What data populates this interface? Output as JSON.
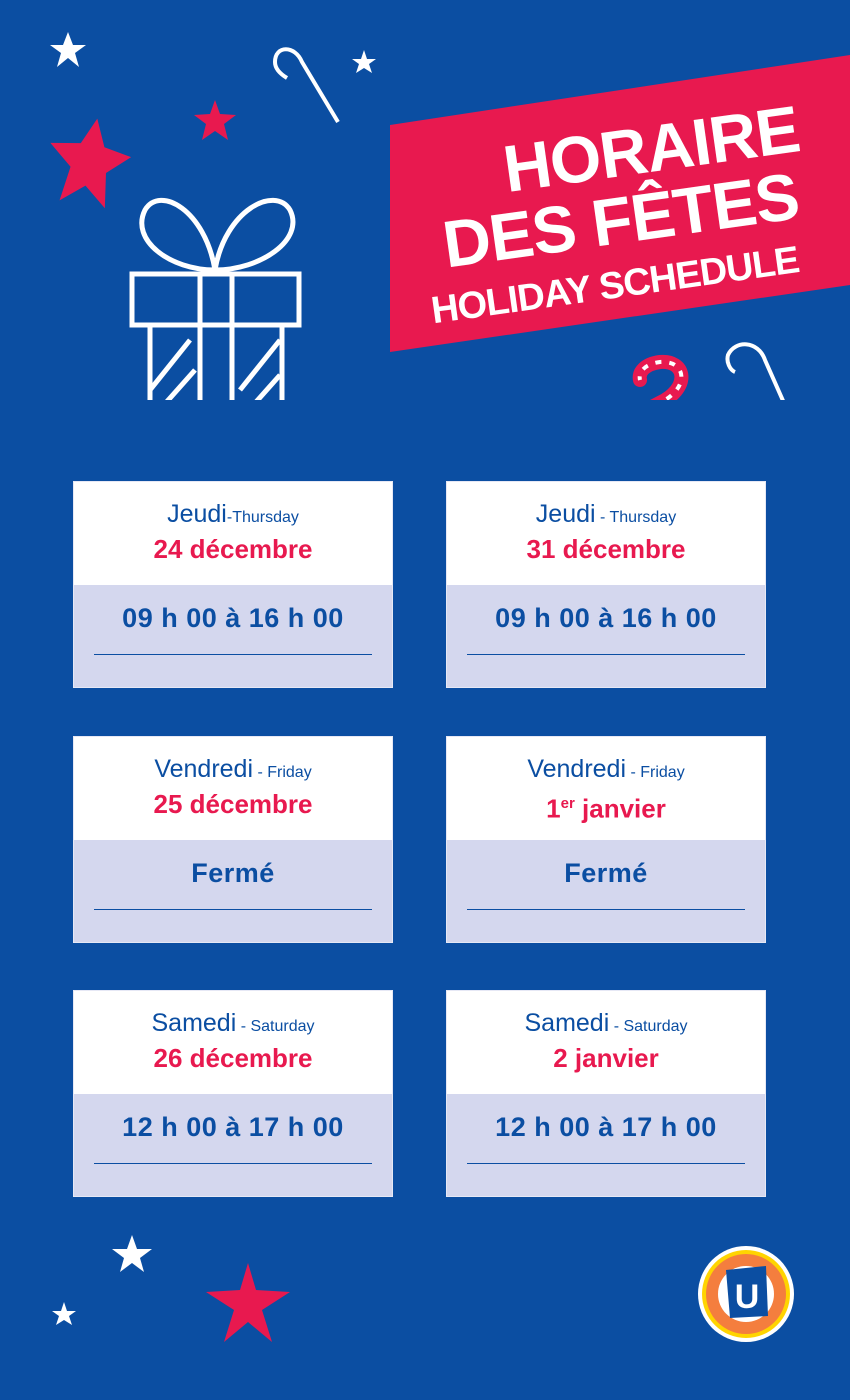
{
  "header": {
    "title_line1": "HORAIRE",
    "title_line2": "DES FÊTES",
    "subtitle": "HOLIDAY SCHEDULE"
  },
  "colors": {
    "background": "#0b4ea2",
    "accent": "#e8194f",
    "card_bottom": "#d4d7ee"
  },
  "cards": [
    {
      "day_fr": "Jeudi",
      "day_en": "-Thursday",
      "date": "24 décembre",
      "hours": "09 h 00 à 16 h 00"
    },
    {
      "day_fr": "Jeudi",
      "day_en": " - Thursday",
      "date": "31 décembre",
      "hours": "09 h 00 à 16 h 00"
    },
    {
      "day_fr": "Vendredi",
      "day_en": " - Friday",
      "date": "25 décembre",
      "hours": "Fermé"
    },
    {
      "day_fr": "Vendredi",
      "day_en": " - Friday",
      "date_num": "1",
      "date_sup": "er",
      "date_rest": " janvier",
      "hours": "Fermé"
    },
    {
      "day_fr": "Samedi",
      "day_en": " - Saturday",
      "date": "26 décembre",
      "hours": "12 h 00 à 17 h 00"
    },
    {
      "day_fr": "Samedi",
      "day_en": " - Saturday",
      "date": "2 janvier",
      "hours": "12 h 00 à 17 h 00"
    }
  ],
  "logo": {
    "letter": "U"
  }
}
